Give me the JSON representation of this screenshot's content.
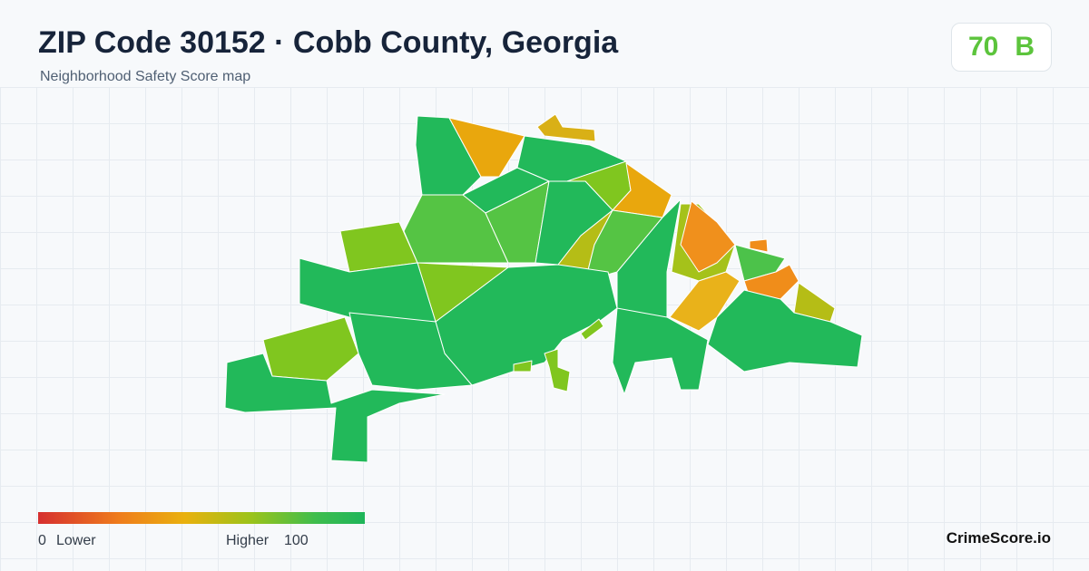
{
  "header": {
    "title": "ZIP Code 30152 · Cobb County, Georgia",
    "subtitle": "Neighborhood Safety Score map"
  },
  "score": {
    "value": 70,
    "grade": "B"
  },
  "legend": {
    "min": 0,
    "min_label": "Lower",
    "max_label": "Higher",
    "max": 100
  },
  "brand": "CrimeScore.io"
}
